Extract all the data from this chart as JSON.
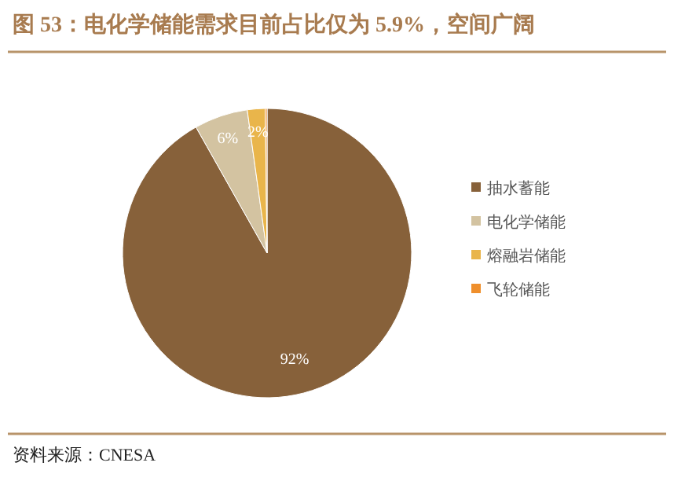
{
  "chart_data": {
    "type": "pie",
    "title": "图 53：电化学储能需求目前占比仅为 5.9%，空间广阔",
    "categories": [
      "抽水蓄能",
      "电化学储能",
      "熔融岩储能",
      "飞轮储能"
    ],
    "values": [
      92,
      6,
      2,
      0.2
    ],
    "value_labels": [
      "92%",
      "6%",
      "2%",
      null
    ],
    "colors": [
      "#87613a",
      "#d3c3a1",
      "#e9b54b",
      "#ef8f2c"
    ],
    "legend": "right",
    "annotations": [
      "资料来源：CNESA"
    ]
  }
}
